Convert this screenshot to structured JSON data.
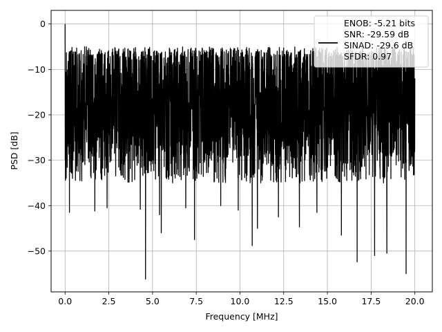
{
  "chart_data": {
    "type": "line",
    "title": "",
    "xlabel": "Frequency [MHz]",
    "ylabel": "PSD [dB]",
    "xlim": [
      -0.8,
      21.0
    ],
    "ylim": [
      -59,
      3
    ],
    "xticks": [
      0.0,
      2.5,
      5.0,
      7.5,
      10.0,
      12.5,
      15.0,
      17.5,
      20.0
    ],
    "xtick_labels": [
      "0.0",
      "2.5",
      "5.0",
      "7.5",
      "10.0",
      "12.5",
      "15.0",
      "17.5",
      "20.0"
    ],
    "yticks": [
      0,
      -10,
      -20,
      -30,
      -40,
      -50
    ],
    "ytick_labels": [
      "0",
      "−10",
      "−20",
      "−30",
      "−40",
      "−50"
    ],
    "grid": true,
    "legend_position": "top-right",
    "series": [
      {
        "name": "ENOB: -5.21 bits\nSNR: -29.59 dB\nSINAD: -29.6 dB\nSFDR: 0.97",
        "color": "#000000",
        "x_range": [
          0.0,
          20.0
        ],
        "peak": {
          "x": 0.0,
          "y": 0.0
        },
        "noise_floor": {
          "typical_upper": -6,
          "typical_lower": -30,
          "median": -15
        },
        "deep_dips": [
          {
            "x": 0.25,
            "y": -41.5
          },
          {
            "x": 1.7,
            "y": -41.2
          },
          {
            "x": 2.4,
            "y": -40.5
          },
          {
            "x": 4.3,
            "y": -40.8
          },
          {
            "x": 4.6,
            "y": -56.2
          },
          {
            "x": 5.4,
            "y": -42.0
          },
          {
            "x": 5.5,
            "y": -46.0
          },
          {
            "x": 6.9,
            "y": -40.5
          },
          {
            "x": 7.4,
            "y": -47.5
          },
          {
            "x": 8.9,
            "y": -40.0
          },
          {
            "x": 9.9,
            "y": -41.0
          },
          {
            "x": 10.7,
            "y": -48.8
          },
          {
            "x": 11.0,
            "y": -45.0
          },
          {
            "x": 12.2,
            "y": -42.5
          },
          {
            "x": 13.4,
            "y": -44.7
          },
          {
            "x": 14.4,
            "y": -41.5
          },
          {
            "x": 15.8,
            "y": -46.5
          },
          {
            "x": 16.7,
            "y": -52.4
          },
          {
            "x": 17.7,
            "y": -51.0
          },
          {
            "x": 18.4,
            "y": -50.5
          },
          {
            "x": 19.5,
            "y": -55.0
          }
        ]
      }
    ]
  }
}
